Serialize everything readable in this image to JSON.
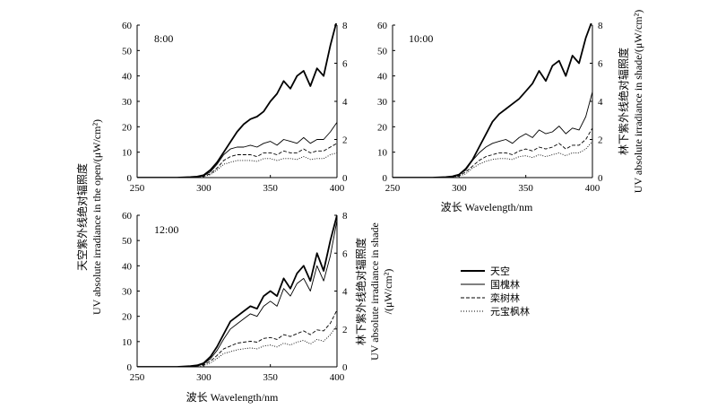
{
  "xlabel": "波长 Wavelength/nm",
  "ylabel_left": [
    "天空紫外线绝对辐照度",
    "UV absolute irradiance in the open/(μW/cm²)"
  ],
  "ylabel_right_top": [
    "林下紫外线绝对辐照度",
    "UV absolute irradiance in shade/(μW/cm²)"
  ],
  "ylabel_right_bottom": [
    "林下紫外线绝对辐照度",
    "UV absolute irradiance in shade",
    "/(μW/cm²)"
  ],
  "legend": [
    {
      "label": "天空",
      "style": "thick-solid"
    },
    {
      "label": "国槐林",
      "style": "thin-solid"
    },
    {
      "label": "栾树林",
      "style": "dashed"
    },
    {
      "label": "元宝枫林",
      "style": "dotted"
    }
  ],
  "x_ticks": [
    "250",
    "300",
    "350",
    "400"
  ],
  "left_ticks": [
    "0",
    "10",
    "20",
    "30",
    "40",
    "50",
    "60"
  ],
  "right_ticks": [
    "0",
    "2",
    "4",
    "6",
    "8"
  ],
  "chart_data": [
    {
      "type": "line",
      "panel_label": "8:00",
      "x": [
        250,
        260,
        270,
        280,
        290,
        295,
        300,
        305,
        310,
        315,
        320,
        325,
        330,
        335,
        340,
        345,
        350,
        355,
        360,
        365,
        370,
        375,
        380,
        385,
        390,
        395,
        400
      ],
      "xlim": [
        250,
        400
      ],
      "ylim_left": [
        0,
        60
      ],
      "ylim_right": [
        0,
        8
      ],
      "series": [
        {
          "name": "天空",
          "axis": "left",
          "values": [
            0,
            0,
            0,
            0,
            0.2,
            0.4,
            1,
            3,
            6,
            10,
            14,
            18,
            21,
            23,
            24,
            26,
            30,
            33,
            38,
            35,
            40,
            42,
            36,
            43,
            40,
            52,
            62
          ]
        },
        {
          "name": "国槐林",
          "axis": "right",
          "values": [
            0,
            0,
            0,
            0,
            0.02,
            0.05,
            0.1,
            0.3,
            0.7,
            1.2,
            1.5,
            1.6,
            1.6,
            1.7,
            1.6,
            1.8,
            1.9,
            1.7,
            2.0,
            1.9,
            1.8,
            2.1,
            1.8,
            2.0,
            2.0,
            2.4,
            2.9
          ]
        },
        {
          "name": "栾树林",
          "axis": "right",
          "values": [
            0,
            0,
            0,
            0,
            0.01,
            0.04,
            0.08,
            0.2,
            0.5,
            0.9,
            1.1,
            1.2,
            1.2,
            1.2,
            1.1,
            1.3,
            1.3,
            1.2,
            1.4,
            1.3,
            1.3,
            1.5,
            1.3,
            1.4,
            1.4,
            1.6,
            1.8
          ]
        },
        {
          "name": "元宝枫林",
          "axis": "right",
          "values": [
            0,
            0,
            0,
            0,
            0.01,
            0.03,
            0.06,
            0.15,
            0.4,
            0.7,
            0.8,
            0.9,
            0.9,
            0.9,
            0.85,
            1.0,
            1.0,
            0.9,
            1.0,
            1.0,
            0.95,
            1.1,
            0.95,
            1.0,
            1.0,
            1.2,
            1.3
          ]
        }
      ]
    },
    {
      "type": "line",
      "panel_label": "10:00",
      "x": [
        250,
        260,
        270,
        280,
        290,
        295,
        300,
        305,
        310,
        315,
        320,
        325,
        330,
        335,
        340,
        345,
        350,
        355,
        360,
        365,
        370,
        375,
        380,
        385,
        390,
        395,
        400
      ],
      "xlim": [
        250,
        400
      ],
      "ylim_left": [
        0,
        60
      ],
      "ylim_right": [
        0,
        8
      ],
      "series": [
        {
          "name": "天空",
          "axis": "left",
          "values": [
            0,
            0,
            0,
            0,
            0.2,
            0.5,
            1.2,
            3.5,
            7,
            12,
            17,
            22,
            25,
            27,
            29,
            31,
            34,
            37,
            42,
            38,
            44,
            46,
            40,
            48,
            45,
            55,
            62
          ]
        },
        {
          "name": "国槐林",
          "axis": "right",
          "values": [
            0,
            0,
            0,
            0,
            0.02,
            0.06,
            0.15,
            0.4,
            0.9,
            1.3,
            1.6,
            1.8,
            1.9,
            2.0,
            1.8,
            2.1,
            2.3,
            2.1,
            2.5,
            2.3,
            2.4,
            2.7,
            2.3,
            2.6,
            2.5,
            3.2,
            4.5
          ]
        },
        {
          "name": "栾树林",
          "axis": "right",
          "values": [
            0,
            0,
            0,
            0,
            0.01,
            0.04,
            0.1,
            0.3,
            0.6,
            0.9,
            1.1,
            1.2,
            1.3,
            1.3,
            1.2,
            1.4,
            1.5,
            1.4,
            1.6,
            1.5,
            1.6,
            1.8,
            1.5,
            1.7,
            1.7,
            2.0,
            2.6
          ]
        },
        {
          "name": "元宝枫林",
          "axis": "right",
          "values": [
            0,
            0,
            0,
            0,
            0.01,
            0.03,
            0.08,
            0.2,
            0.5,
            0.7,
            0.85,
            0.95,
            1.0,
            1.0,
            0.95,
            1.1,
            1.15,
            1.05,
            1.2,
            1.1,
            1.2,
            1.3,
            1.15,
            1.3,
            1.3,
            1.5,
            1.9
          ]
        }
      ]
    },
    {
      "type": "line",
      "panel_label": "12:00",
      "x": [
        250,
        260,
        270,
        280,
        290,
        295,
        300,
        305,
        310,
        315,
        320,
        325,
        330,
        335,
        340,
        345,
        350,
        355,
        360,
        365,
        370,
        375,
        380,
        385,
        390,
        395,
        400
      ],
      "xlim": [
        250,
        400
      ],
      "ylim_left": [
        0,
        60
      ],
      "ylim_right": [
        0,
        8
      ],
      "series": [
        {
          "name": "天空",
          "axis": "left",
          "values": [
            0,
            0,
            0,
            0,
            0.3,
            0.6,
            1.5,
            4,
            8,
            13,
            18,
            20,
            22,
            24,
            23,
            28,
            30,
            28,
            35,
            31,
            37,
            40,
            34,
            45,
            38,
            50,
            60
          ]
        },
        {
          "name": "国槐林",
          "axis": "left",
          "values": [
            0,
            0,
            0,
            0,
            0.2,
            0.5,
            1.2,
            3.2,
            6.5,
            11,
            15,
            17,
            19,
            21,
            20,
            24,
            26,
            24,
            31,
            28,
            33,
            35,
            30,
            40,
            34,
            44,
            58
          ]
        },
        {
          "name": "栾树林",
          "axis": "right",
          "values": [
            0,
            0,
            0,
            0,
            0.02,
            0.05,
            0.12,
            0.3,
            0.6,
            0.95,
            1.1,
            1.25,
            1.3,
            1.35,
            1.3,
            1.5,
            1.55,
            1.45,
            1.7,
            1.6,
            1.75,
            1.9,
            1.7,
            1.95,
            1.9,
            2.3,
            3.0
          ]
        },
        {
          "name": "元宝枫林",
          "axis": "right",
          "values": [
            0,
            0,
            0,
            0,
            0.01,
            0.03,
            0.08,
            0.2,
            0.45,
            0.7,
            0.8,
            0.9,
            0.95,
            1.0,
            0.95,
            1.1,
            1.15,
            1.05,
            1.25,
            1.15,
            1.3,
            1.4,
            1.2,
            1.45,
            1.35,
            1.7,
            2.2
          ]
        }
      ]
    }
  ]
}
